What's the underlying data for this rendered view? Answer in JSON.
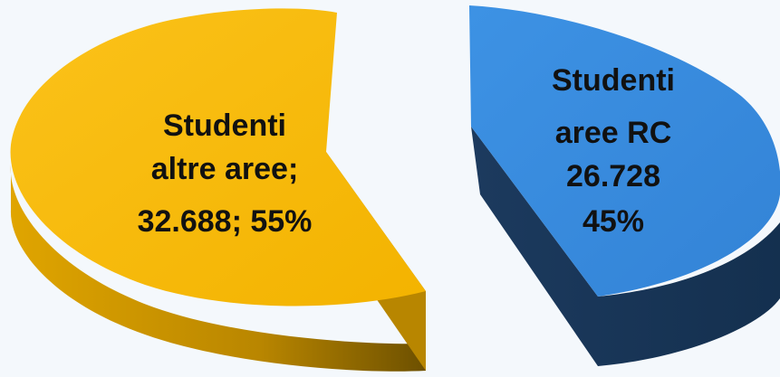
{
  "chart_data": {
    "type": "pie",
    "style": "3d-exploded",
    "title": "",
    "slices": [
      {
        "name": "Studenti altre aree",
        "value": 32688,
        "percent": 55,
        "color": "#f6b800",
        "side_color": "#c99400",
        "label_lines": [
          "Studenti",
          "altre aree;",
          "32.688; 55%"
        ]
      },
      {
        "name": "Studenti aree RC",
        "value": 26728,
        "percent": 45,
        "color": "#3a8ddf",
        "side_color": "#1d3f66",
        "label_lines": [
          "Studenti",
          "aree RC",
          "26.728",
          "45%"
        ]
      }
    ]
  }
}
